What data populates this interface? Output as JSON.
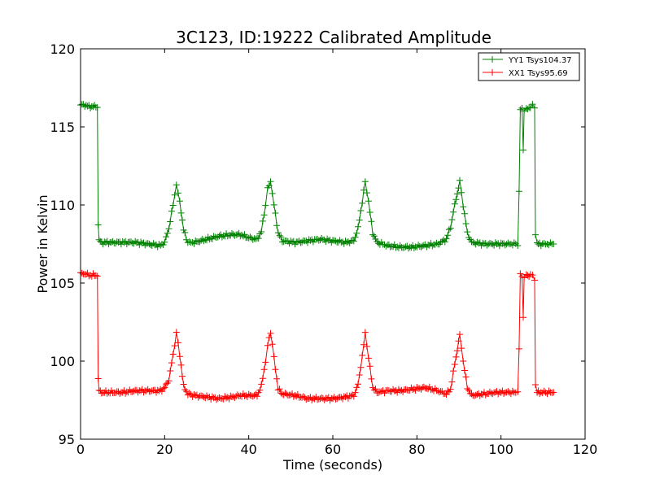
{
  "chart_data": {
    "type": "line",
    "title": "3C123, ID:19222 Calibrated Amplitude",
    "xlabel": "Time (seconds)",
    "ylabel": "Power in Kelvin",
    "xlim": [
      0,
      120
    ],
    "ylim": [
      95,
      120
    ],
    "xticks": [
      0,
      20,
      40,
      60,
      80,
      100,
      120
    ],
    "yticks": [
      95,
      100,
      105,
      110,
      115,
      120
    ],
    "grid": false,
    "legend_position": "top-right",
    "marker": "+",
    "series": [
      {
        "name": "YY1 Tsys104.37",
        "color": "#008000",
        "x": [
          0,
          1,
          2,
          3,
          4,
          4.2,
          4.4,
          5,
          7,
          10,
          13,
          16,
          19,
          20,
          21,
          22,
          22.8,
          23.6,
          24.5,
          25.5,
          27,
          30,
          33,
          36,
          38,
          40,
          42,
          43,
          44,
          44.5,
          45.2,
          46,
          47,
          48,
          51,
          54,
          57,
          60,
          63,
          65,
          66,
          67,
          67.7,
          68.5,
          69.5,
          70.5,
          73,
          76,
          79,
          82,
          85,
          87,
          88,
          89,
          90.2,
          91,
          92,
          93,
          96,
          99,
          102,
          103.5,
          104,
          104.3,
          104.6,
          105,
          105.3,
          105.5,
          106,
          107,
          107.5,
          108,
          108.2,
          108.6,
          109.5,
          111,
          112.5
        ],
        "y": [
          116.4,
          116.4,
          116.3,
          116.3,
          116.3,
          108.8,
          107.7,
          107.6,
          107.6,
          107.6,
          107.6,
          107.5,
          107.4,
          107.6,
          108.5,
          110.0,
          111.3,
          110.2,
          108.4,
          107.6,
          107.6,
          107.8,
          108.0,
          108.1,
          108.1,
          107.9,
          107.8,
          108.3,
          110.0,
          111.0,
          111.5,
          110.0,
          108.2,
          107.7,
          107.6,
          107.7,
          107.8,
          107.7,
          107.6,
          107.7,
          108.5,
          110.2,
          111.5,
          110.2,
          108.2,
          107.6,
          107.4,
          107.3,
          107.3,
          107.4,
          107.5,
          107.8,
          108.6,
          110.0,
          111.5,
          110.0,
          108.2,
          107.6,
          107.5,
          107.5,
          107.5,
          107.5,
          107.5,
          110.8,
          116.1,
          116.2,
          113.6,
          116.0,
          116.1,
          116.3,
          116.4,
          116.2,
          108.2,
          107.5,
          107.5,
          107.5,
          107.5
        ]
      },
      {
        "name": "XX1 Tsys95.69",
        "color": "#ff0000",
        "x": [
          0,
          1,
          2,
          3,
          4,
          4.2,
          4.4,
          5,
          7,
          10,
          13,
          16,
          19,
          20,
          21,
          22,
          22.8,
          23.6,
          24.5,
          25.5,
          27,
          30,
          33,
          36,
          38,
          40,
          42,
          43,
          44,
          44.5,
          45.2,
          46,
          47,
          48,
          51,
          54,
          57,
          60,
          63,
          65,
          66,
          67,
          67.7,
          68.5,
          69.5,
          70.5,
          73,
          76,
          79,
          82,
          85,
          87,
          88,
          89,
          90.2,
          91,
          92,
          93,
          96,
          99,
          102,
          103.5,
          104,
          104.3,
          104.6,
          105,
          105.3,
          105.5,
          106,
          107,
          107.5,
          108,
          108.2,
          108.6,
          109.5,
          111,
          112.5
        ],
        "y": [
          105.6,
          105.6,
          105.5,
          105.5,
          105.5,
          98.8,
          98.1,
          98.0,
          98.0,
          98.0,
          98.1,
          98.1,
          98.1,
          98.3,
          98.8,
          100.4,
          101.8,
          100.4,
          98.4,
          97.9,
          97.8,
          97.7,
          97.6,
          97.7,
          97.8,
          97.8,
          97.8,
          98.4,
          100.0,
          101.0,
          101.9,
          100.2,
          98.2,
          97.9,
          97.8,
          97.6,
          97.6,
          97.6,
          97.7,
          97.8,
          98.5,
          100.3,
          101.8,
          100.2,
          98.3,
          98.0,
          98.1,
          98.1,
          98.2,
          98.3,
          98.1,
          97.9,
          98.2,
          99.8,
          101.7,
          100.0,
          98.3,
          97.8,
          97.9,
          98.0,
          98.0,
          98.0,
          98.0,
          100.8,
          105.5,
          105.5,
          102.8,
          105.4,
          105.5,
          105.5,
          105.5,
          105.3,
          98.5,
          98.0,
          98.0,
          98.0,
          98.0
        ]
      }
    ]
  }
}
